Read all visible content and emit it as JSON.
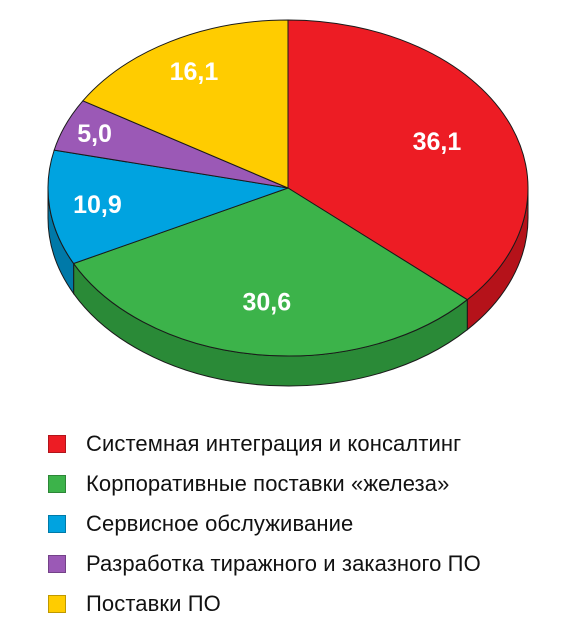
{
  "chart_data": {
    "type": "pie",
    "style": "3d",
    "legend_position": "bottom",
    "slices": [
      {
        "label": "Системная интеграция и консалтинг",
        "value": 36.1,
        "value_label": "36,1",
        "color": "#ed1c24",
        "side_color": "#b5121a"
      },
      {
        "label": "Корпоративные поставки «железа»",
        "value": 30.6,
        "value_label": "30,6",
        "color": "#3cb34a",
        "side_color": "#2a8a37"
      },
      {
        "label": "Сервисное обслуживание",
        "value": 10.9,
        "value_label": "10,9",
        "color": "#00a3e0",
        "side_color": "#0079a8"
      },
      {
        "label": "Разработка тиражного и заказного ПО",
        "value": 5.0,
        "value_label": "5,0",
        "color": "#9b59b6",
        "side_color": "#733f88"
      },
      {
        "label": "Поставки ПО",
        "value": 16.1,
        "value_label": "16,1",
        "color": "#ffcc00",
        "side_color": "#c99f00"
      }
    ]
  }
}
